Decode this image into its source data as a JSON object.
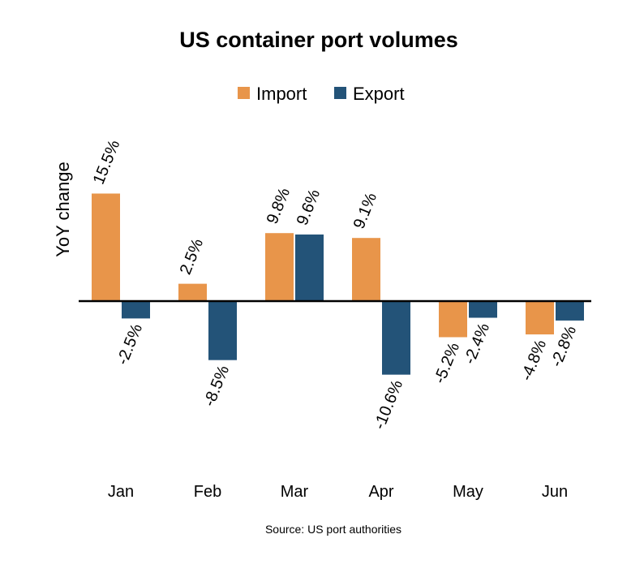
{
  "chart_data": {
    "type": "bar",
    "title": "US container port volumes",
    "xlabel": "",
    "ylabel": "YoY change",
    "source": "Source: US port authorities",
    "categories": [
      "Jan",
      "Feb",
      "Mar",
      "Apr",
      "May",
      "Jun"
    ],
    "series": [
      {
        "name": "Import",
        "color": "#E8954A",
        "values": [
          15.5,
          2.5,
          9.8,
          9.1,
          -5.2,
          -4.8
        ],
        "labels": [
          "15.5%",
          "2.5%",
          "9.8%",
          "9.1%",
          "-5.2%",
          "-4.8%"
        ]
      },
      {
        "name": "Export",
        "color": "#235378",
        "values": [
          -2.5,
          -8.5,
          9.6,
          -10.6,
          -2.4,
          -2.8
        ],
        "labels": [
          "-2.5%",
          "-8.5%",
          "9.6%",
          "-10.6%",
          "-2.4%",
          "-2.8%"
        ]
      }
    ],
    "ylim": [
      -12,
      18
    ],
    "grid": false,
    "legend_position": "top-center",
    "data_labels_rotation": "-60deg"
  }
}
